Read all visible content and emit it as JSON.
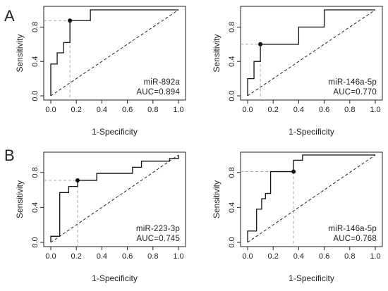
{
  "panels": [
    {
      "label": "A"
    },
    {
      "label": ""
    },
    {
      "label": "B"
    },
    {
      "label": ""
    }
  ],
  "chart_data": [
    {
      "type": "line",
      "title": "",
      "xlabel": "1-Specificity",
      "ylabel": "Sensitivity",
      "xlim": [
        0,
        1
      ],
      "ylim": [
        0,
        1
      ],
      "xticks": [
        "0.0",
        "0.2",
        "0.4",
        "0.6",
        "0.8",
        "1.0"
      ],
      "yticks": [
        "0.0",
        "0.4",
        "0.8"
      ],
      "annotation": "miR-892a",
      "auc_text": "AUC=0.894",
      "roc_x": [
        0,
        0,
        0.05,
        0.05,
        0.1,
        0.1,
        0.15,
        0.15,
        0.31,
        0.31,
        1.0
      ],
      "roc_y": [
        0,
        0.37,
        0.37,
        0.5,
        0.5,
        0.62,
        0.62,
        0.875,
        0.875,
        1.0,
        1.0
      ],
      "cutoff": {
        "x": 0.15,
        "y": 0.875
      }
    },
    {
      "type": "line",
      "title": "",
      "xlabel": "1-Specificity",
      "ylabel": "Sensitivity",
      "xlim": [
        0,
        1
      ],
      "ylim": [
        0,
        1
      ],
      "xticks": [
        "0.0",
        "0.2",
        "0.4",
        "0.6",
        "0.8",
        "1.0"
      ],
      "yticks": [
        "0.0",
        "0.4",
        "0.8"
      ],
      "annotation": "miR-146a-5p",
      "auc_text": "AUC=0.770",
      "roc_x": [
        0,
        0,
        0.05,
        0.05,
        0.1,
        0.1,
        0.4,
        0.4,
        0.6,
        0.6,
        1.0
      ],
      "roc_y": [
        0,
        0.2,
        0.2,
        0.4,
        0.4,
        0.6,
        0.6,
        0.8,
        0.8,
        1.0,
        1.0
      ],
      "cutoff": {
        "x": 0.1,
        "y": 0.6
      }
    },
    {
      "type": "line",
      "title": "",
      "xlabel": "1-Specificity",
      "ylabel": "Sensitivity",
      "xlim": [
        0,
        1
      ],
      "ylim": [
        0,
        1
      ],
      "xticks": [
        "0.0",
        "0.2",
        "0.4",
        "0.6",
        "0.8",
        "1.0"
      ],
      "yticks": [
        "0.0",
        "0.4",
        "0.8"
      ],
      "annotation": "miR-223-3p",
      "auc_text": "AUC=0.745",
      "roc_x": [
        0,
        0,
        0.07,
        0.07,
        0.14,
        0.14,
        0.21,
        0.21,
        0.36,
        0.36,
        0.64,
        0.64,
        0.71,
        0.71,
        0.93,
        0.93,
        1.0,
        1.0
      ],
      "roc_y": [
        0,
        0.07,
        0.07,
        0.57,
        0.57,
        0.64,
        0.64,
        0.71,
        0.71,
        0.79,
        0.79,
        0.86,
        0.86,
        0.93,
        0.93,
        0.96,
        0.96,
        1.0
      ],
      "cutoff": {
        "x": 0.21,
        "y": 0.71
      }
    },
    {
      "type": "line",
      "title": "",
      "xlabel": "1-Specificity",
      "ylabel": "Sensitivity",
      "xlim": [
        0,
        1
      ],
      "ylim": [
        0,
        1
      ],
      "xticks": [
        "0.0",
        "0.2",
        "0.4",
        "0.6",
        "0.8",
        "1.0"
      ],
      "yticks": [
        "0.0",
        "0.4",
        "0.8"
      ],
      "annotation": "miR-146a-5p",
      "auc_text": "AUC=0.768",
      "roc_x": [
        0,
        0,
        0.07,
        0.07,
        0.11,
        0.11,
        0.14,
        0.14,
        0.18,
        0.18,
        0.36,
        0.36,
        0.43,
        0.43,
        0.64,
        0.64,
        1.0
      ],
      "roc_y": [
        0,
        0.13,
        0.13,
        0.38,
        0.38,
        0.5,
        0.5,
        0.56,
        0.56,
        0.81,
        0.81,
        0.94,
        0.94,
        1.0,
        1.0,
        1.0,
        1.0
      ],
      "cutoff": {
        "x": 0.36,
        "y": 0.81
      }
    }
  ]
}
